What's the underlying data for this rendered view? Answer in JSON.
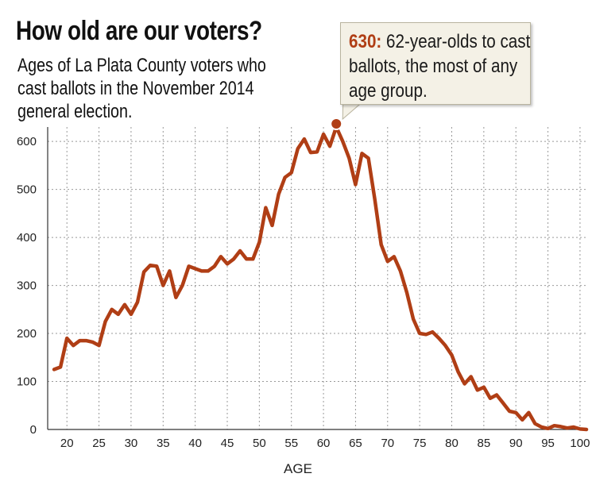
{
  "title": "How old are our voters?",
  "subtitle": "Ages of La Plata County voters who cast ballots in the November 2014 general election.",
  "callout": {
    "value": "630:",
    "text": "62-year-olds to cast ballots, the most of any age group."
  },
  "colors": {
    "line": "#b03e15",
    "grid": "#999999",
    "callout_bg": "#f4f1e6"
  },
  "chart_data": {
    "type": "line",
    "title": "How old are our voters?",
    "subtitle": "Ages of La Plata County voters who cast ballots in the November 2014 general election.",
    "xlabel": "AGE",
    "ylabel": "",
    "xlim": [
      17,
      101
    ],
    "ylim": [
      0,
      630
    ],
    "x_ticks": [
      20,
      25,
      30,
      35,
      40,
      45,
      50,
      55,
      60,
      65,
      70,
      75,
      80,
      85,
      90,
      95,
      100
    ],
    "y_ticks": [
      0,
      100,
      200,
      300,
      400,
      500,
      600
    ],
    "grid": true,
    "highlight": {
      "x": 62,
      "y": 630
    },
    "series": [
      {
        "x": [
          18,
          19,
          20,
          21,
          22,
          23,
          24,
          25,
          26,
          27,
          28,
          29,
          30,
          31,
          32,
          33,
          34,
          35,
          36,
          37,
          38,
          39,
          40,
          41,
          42,
          43,
          44,
          45,
          46,
          47,
          48,
          49,
          50,
          51,
          52,
          53,
          54,
          55,
          56,
          57,
          58,
          59,
          60,
          61,
          62,
          63,
          64,
          65,
          66,
          67,
          68,
          69,
          70,
          71,
          72,
          73,
          74,
          75,
          76,
          77,
          78,
          79,
          80,
          81,
          82,
          83,
          84,
          85,
          86,
          87,
          88,
          89,
          90,
          91,
          92,
          93,
          94,
          95,
          96,
          97,
          98,
          99,
          100,
          101
        ],
        "y": [
          125,
          130,
          190,
          175,
          185,
          185,
          182,
          175,
          225,
          250,
          240,
          260,
          240,
          265,
          328,
          342,
          340,
          300,
          330,
          275,
          300,
          340,
          335,
          330,
          330,
          340,
          360,
          345,
          355,
          372,
          355,
          355,
          390,
          462,
          425,
          490,
          525,
          535,
          585,
          605,
          577,
          578,
          615,
          590,
          630,
          600,
          565,
          510,
          575,
          565,
          480,
          385,
          350,
          360,
          330,
          285,
          230,
          200,
          198,
          203,
          190,
          175,
          155,
          120,
          95,
          110,
          82,
          88,
          65,
          72,
          55,
          38,
          35,
          20,
          35,
          12,
          5,
          2,
          8,
          6,
          3,
          5,
          1,
          0
        ]
      }
    ]
  }
}
